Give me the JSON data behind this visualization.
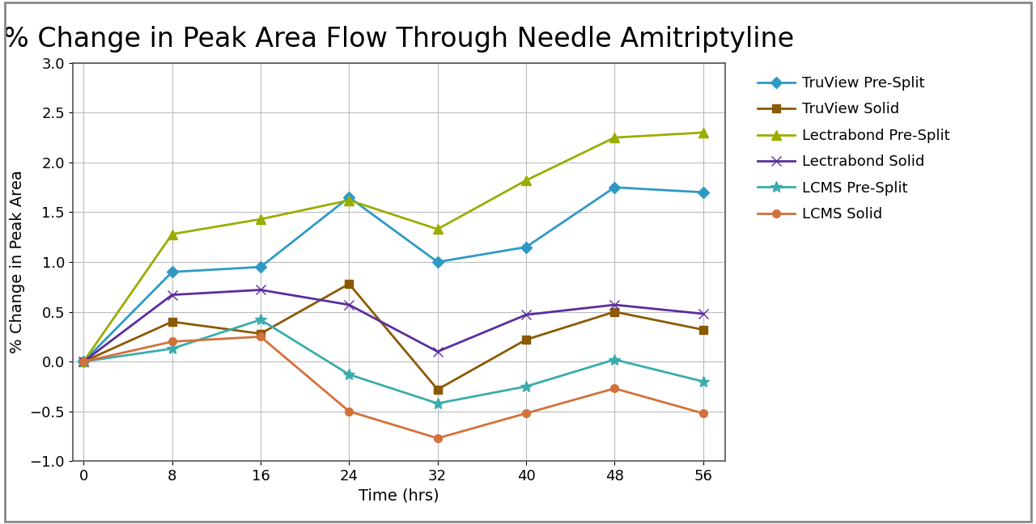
{
  "title": "% Change in Peak Area Flow Through Needle Amitriptyline",
  "xlabel": "Time (hrs)",
  "ylabel": "% Change in Peak Area",
  "x": [
    0,
    8,
    16,
    24,
    32,
    40,
    48,
    56
  ],
  "series": [
    {
      "label": "TruView Pre-Split",
      "color": "#2E9AC4",
      "marker": "D",
      "markersize": 7,
      "linewidth": 2.0,
      "values": [
        0.0,
        0.9,
        0.95,
        1.65,
        1.0,
        1.15,
        1.75,
        1.7
      ]
    },
    {
      "label": "TruView Solid",
      "color": "#8B5A00",
      "marker": "s",
      "markersize": 7,
      "linewidth": 2.0,
      "values": [
        0.0,
        0.4,
        0.28,
        0.78,
        -0.28,
        0.22,
        0.5,
        0.32
      ]
    },
    {
      "label": "Lectrabond Pre-Split",
      "color": "#9AAD00",
      "marker": "^",
      "markersize": 8,
      "linewidth": 2.0,
      "values": [
        0.0,
        1.28,
        1.43,
        1.62,
        1.33,
        1.82,
        2.25,
        2.3
      ]
    },
    {
      "label": "Lectrabond Solid",
      "color": "#5B2D9E",
      "marker": "x",
      "markersize": 9,
      "linewidth": 2.0,
      "values": [
        0.0,
        0.67,
        0.72,
        0.57,
        0.1,
        0.47,
        0.57,
        0.48
      ]
    },
    {
      "label": "LCMS Pre-Split",
      "color": "#3AACAC",
      "marker": "*",
      "markersize": 10,
      "linewidth": 2.0,
      "values": [
        0.0,
        0.13,
        0.42,
        -0.13,
        -0.42,
        -0.25,
        0.02,
        -0.2
      ]
    },
    {
      "label": "LCMS Solid",
      "color": "#D4703A",
      "marker": "o",
      "markersize": 7,
      "linewidth": 2.0,
      "values": [
        0.0,
        0.2,
        0.25,
        -0.5,
        -0.77,
        -0.52,
        -0.27,
        -0.52
      ]
    }
  ],
  "ylim": [
    -1.0,
    3.0
  ],
  "yticks": [
    -1.0,
    -0.5,
    0.0,
    0.5,
    1.0,
    1.5,
    2.0,
    2.5,
    3.0
  ],
  "xticks": [
    0,
    8,
    16,
    24,
    32,
    40,
    48,
    56
  ],
  "background_color": "#ffffff",
  "outer_border_color": "#aaaaaa",
  "grid_color": "#bbbbbb",
  "title_fontsize": 24,
  "axis_label_fontsize": 14,
  "tick_fontsize": 13,
  "legend_fontsize": 13
}
